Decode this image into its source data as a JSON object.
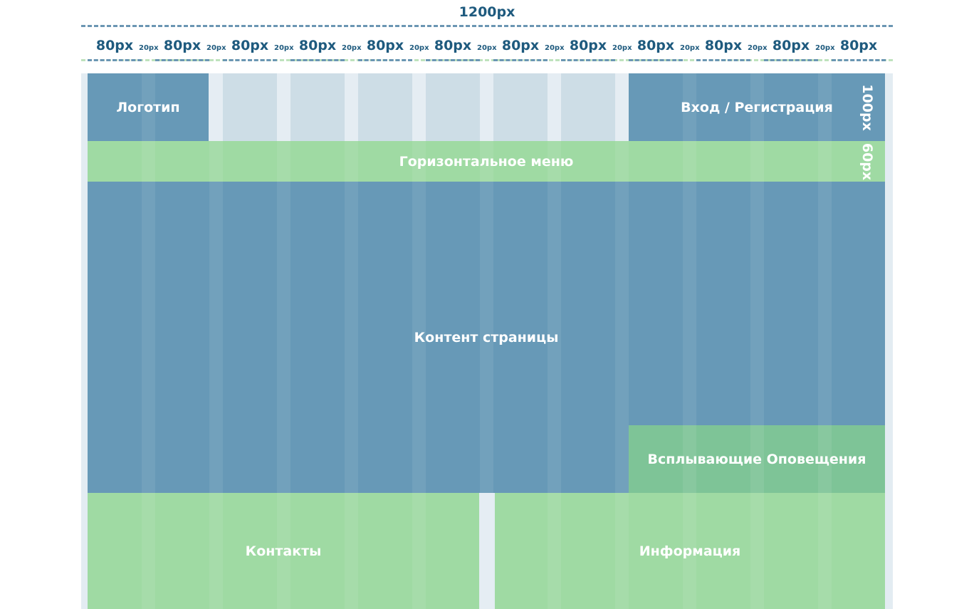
{
  "ruler": {
    "total": "1200px",
    "column": "80px",
    "gutter": "20px",
    "column_count": 12
  },
  "blocks": {
    "logo": "Логотип",
    "login": "Вход / Регистрация",
    "menu": "Горизонтальное меню",
    "content": "Контент страницы",
    "alerts": "Всплывающие Оповещения",
    "contacts": "Контакты",
    "info": "Информация"
  },
  "heights": {
    "header": "100px",
    "menu": "60px"
  },
  "colors": {
    "blue": "#6799b7",
    "green": "#9fdaa3",
    "green_dark": "#7ec497",
    "label": "#1e5a7e"
  }
}
